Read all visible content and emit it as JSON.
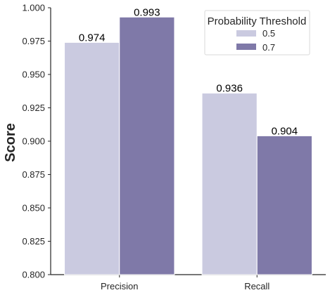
{
  "chart_data": {
    "type": "bar",
    "categories": [
      "Precision",
      "Recall"
    ],
    "series": [
      {
        "name": "0.5",
        "values": [
          0.974,
          0.936
        ],
        "color": "#cacae0"
      },
      {
        "name": "0.7",
        "values": [
          0.993,
          0.904
        ],
        "color": "#7f79a8"
      }
    ],
    "data_labels": [
      [
        "0.974",
        "0.936"
      ],
      [
        "0.993",
        "0.904"
      ]
    ],
    "ylabel": "Score",
    "xlabel": "",
    "ylim": [
      0.8,
      1.0
    ],
    "yticks": [
      "0.800",
      "0.825",
      "0.850",
      "0.875",
      "0.900",
      "0.925",
      "0.950",
      "0.975",
      "1.000"
    ],
    "legend": {
      "title": "Probability Threshold",
      "placement": "top-right",
      "entries": [
        "0.5",
        "0.7"
      ]
    },
    "grid": false
  }
}
